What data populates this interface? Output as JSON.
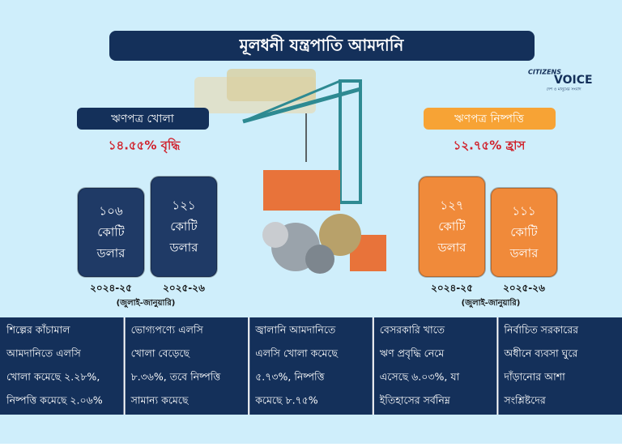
{
  "title": "মূলধনী যন্ত্রপাতি আমদানি",
  "logo": {
    "name_top": "CITIZENS",
    "name_main": "VOICE",
    "tagline": "দেশ ও মানুষের সংবাদ"
  },
  "panels": [
    {
      "label": "ঋণপত্র খোলা",
      "change": "১৪.৫৫% বৃদ্ধি",
      "note": "(জুলাই-জানুয়ারি)",
      "blocks": [
        {
          "amount": "১০৬",
          "unit1": "কোটি",
          "unit2": "ডলার",
          "period": "২০২৪-২৫"
        },
        {
          "amount": "১২১",
          "unit1": "কোটি",
          "unit2": "ডলার",
          "period": "২০২৫-২৬"
        }
      ]
    },
    {
      "label": "ঋণপত্র নিষ্পত্তি",
      "change": "১২.৭৫% হ্রাস",
      "note": "(জুলাই-জানুয়ারি)",
      "blocks": [
        {
          "amount": "১২৭",
          "unit1": "কোটি",
          "unit2": "ডলার",
          "period": "২০২৪-২৫"
        },
        {
          "amount": "১১১",
          "unit1": "কোটি",
          "unit2": "ডলার",
          "period": "২০২৫-২৬"
        }
      ]
    }
  ],
  "notes": [
    [
      "শিল্পের কাঁচামাল",
      "আমদানিতে এলসি",
      "খোলা কমেছে ২.২৮%,",
      "নিষ্পত্তি কমেছে ২.০৬%"
    ],
    [
      "ভোগ্যপণ্যে এলসি",
      "খোলা বেড়েছে",
      "৮.৩৬%, তবে নিষ্পত্তি",
      "সামান্য কমেছে"
    ],
    [
      "জ্বালানি আমদানিতে",
      "এলসি খোলা কমেছে",
      "৫.৭৩%, নিষ্পত্তি",
      "কমেছে ৮.৭৫%"
    ],
    [
      "বেসরকারি খাতে",
      "ঋণ প্রবৃদ্ধি নেমে",
      "এসেছে ৬.০৩%, যা",
      "ইতিহাসের সর্বনিম্ন"
    ],
    [
      "নির্বাচিত সরকারের",
      "অধীনে ব্যবসা ঘুরে",
      "দাঁড়ানোর আশা",
      "সংশ্লিষ্টদের"
    ]
  ]
}
